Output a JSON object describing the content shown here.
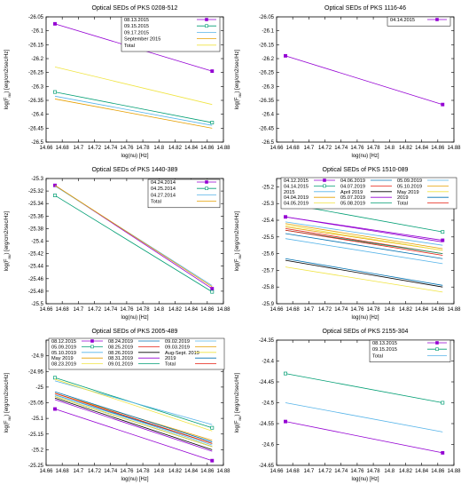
{
  "figure_name": "Optical SEDs grid",
  "chart_data": [
    {
      "type": "line",
      "title": "Optical SEDs of PKS 0208-512",
      "xlabel": "log(nu) [Hz]",
      "ylabel": "log(F_nu) [erg/cm2/sec/Hz]",
      "xlim": [
        14.66,
        14.88
      ],
      "ylim": [
        -26.5,
        -26.05
      ],
      "xticks": [
        "14.66",
        "14.68",
        "14.7",
        "14.72",
        "14.74",
        "14.76",
        "14.78",
        "14.8",
        "14.82",
        "14.84",
        "14.86",
        "14.88"
      ],
      "yticks": [
        "-26.05",
        "-26.1",
        "-26.15",
        "-26.2",
        "-26.25",
        "-26.3",
        "-26.35",
        "-26.4",
        "-26.45",
        "-26.5"
      ],
      "legend_position": "top-right",
      "x": [
        14.671,
        14.866
      ],
      "series": [
        {
          "name": "08.13.2015",
          "color": "#9400d3",
          "marker": "square-filled",
          "values": [
            -26.075,
            -26.245
          ]
        },
        {
          "name": "09.15.2015",
          "color": "#009e73",
          "marker": "square-open",
          "values": [
            -26.32,
            -26.43
          ]
        },
        {
          "name": "09.17.2015",
          "color": "#56b4e9",
          "marker": "none",
          "values": [
            -26.335,
            -26.44
          ]
        },
        {
          "name": "September 2015",
          "color": "#e69f00",
          "marker": "none",
          "values": [
            -26.345,
            -26.45
          ]
        },
        {
          "name": "Total",
          "color": "#f0e442",
          "marker": "none",
          "values": [
            -26.23,
            -26.365
          ]
        }
      ]
    },
    {
      "type": "line",
      "title": "Optical SEDs of PKS 1116-46",
      "xlabel": "log(nu) [Hz]",
      "ylabel": "log(F_nu) [erg/cm2/sec/Hz]",
      "xlim": [
        14.66,
        14.88
      ],
      "ylim": [
        -26.5,
        -26.05
      ],
      "xticks": [
        "14.66",
        "14.68",
        "14.7",
        "14.72",
        "14.74",
        "14.76",
        "14.78",
        "14.8",
        "14.82",
        "14.84",
        "14.86",
        "14.88"
      ],
      "yticks": [
        "-26.05",
        "-26.1",
        "-26.15",
        "-26.2",
        "-26.25",
        "-26.3",
        "-26.35",
        "-26.4",
        "-26.45",
        "-26.5"
      ],
      "legend_position": "top-right",
      "x": [
        14.671,
        14.866
      ],
      "series": [
        {
          "name": "04.14.2015",
          "color": "#9400d3",
          "marker": "square-filled",
          "values": [
            -26.19,
            -26.365
          ]
        }
      ]
    },
    {
      "type": "line",
      "title": "Optical SEDs of PKS 1440-389",
      "xlabel": "log(nu) [Hz]",
      "ylabel": "log(F_nu) [erg/cm2/sec/Hz]",
      "xlim": [
        14.66,
        14.88
      ],
      "ylim": [
        -25.5,
        -25.3
      ],
      "xticks": [
        "14.66",
        "14.68",
        "14.7",
        "14.72",
        "14.74",
        "14.76",
        "14.78",
        "14.8",
        "14.82",
        "14.84",
        "14.86",
        "14.88"
      ],
      "yticks": [
        "-25.3",
        "-25.32",
        "-25.34",
        "-25.36",
        "-25.38",
        "-25.4",
        "-25.42",
        "-25.44",
        "-25.46",
        "-25.48",
        "-25.5"
      ],
      "legend_position": "top-right",
      "x": [
        14.671,
        14.866
      ],
      "series": [
        {
          "name": "04.24.2014",
          "color": "#9400d3",
          "marker": "square-filled",
          "values": [
            -25.311,
            -25.476
          ]
        },
        {
          "name": "04.25.2014",
          "color": "#009e73",
          "marker": "square-open",
          "values": [
            -25.327,
            -25.481
          ]
        },
        {
          "name": "04.27.2014",
          "color": "#56b4e9",
          "marker": "none",
          "values": [
            -25.312,
            -25.471
          ]
        },
        {
          "name": "Total",
          "color": "#e69f00",
          "marker": "none",
          "values": [
            -25.311,
            -25.473
          ]
        }
      ]
    },
    {
      "type": "line",
      "title": "Optical SEDs of PKS 1510-089",
      "xlabel": "log(nu) [Hz]",
      "ylabel": "log(F_nu) [erg/cm2/sec/Hz]",
      "xlim": [
        14.66,
        14.88
      ],
      "ylim": [
        -25.9,
        -25.15
      ],
      "xticks": [
        "14.66",
        "14.68",
        "14.7",
        "14.72",
        "14.74",
        "14.76",
        "14.78",
        "14.8",
        "14.82",
        "14.84",
        "14.86",
        "14.88"
      ],
      "yticks": [
        "-25.2",
        "-25.3",
        "-25.4",
        "-25.5",
        "-25.6",
        "-25.7",
        "-25.8",
        "-25.9"
      ],
      "legend_position": "top",
      "x": [
        14.671,
        14.866
      ],
      "series": [
        {
          "name": "04.12.2015",
          "color": "#9400d3",
          "marker": "square-filled",
          "values": [
            -25.38,
            -25.52
          ]
        },
        {
          "name": "04.14.2015",
          "color": "#009e73",
          "marker": "square-open",
          "values": [
            -25.3,
            -25.47
          ]
        },
        {
          "name": "2015",
          "color": "#56b4e9",
          "marker": "none",
          "values": [
            -25.41,
            -25.55
          ]
        },
        {
          "name": "04.04.2019",
          "color": "#e69f00",
          "marker": "none",
          "values": [
            -25.42,
            -25.57
          ]
        },
        {
          "name": "04.05.2019",
          "color": "#f0e442",
          "marker": "none",
          "values": [
            -25.68,
            -25.83
          ]
        },
        {
          "name": "04.06.2019",
          "color": "#0072b2",
          "marker": "none",
          "values": [
            -25.63,
            -25.79
          ]
        },
        {
          "name": "04.07.2019",
          "color": "#e51e10",
          "marker": "none",
          "values": [
            -25.45,
            -25.6
          ]
        },
        {
          "name": "April 2019",
          "color": "#000000",
          "marker": "none",
          "values": [
            -25.64,
            -25.8
          ]
        },
        {
          "name": "05.07.2019",
          "color": "#9400d3",
          "marker": "none",
          "values": [
            -25.38,
            -25.53
          ]
        },
        {
          "name": "05.08.2019",
          "color": "#009e73",
          "marker": "none",
          "values": [
            -25.46,
            -25.6
          ]
        },
        {
          "name": "05.09.2019",
          "color": "#56b4e9",
          "marker": "none",
          "values": [
            -25.51,
            -25.66
          ]
        },
        {
          "name": "05.10.2019",
          "color": "#e69f00",
          "marker": "none",
          "values": [
            -25.44,
            -25.58
          ]
        },
        {
          "name": "May 2019",
          "color": "#f0e442",
          "marker": "none",
          "values": [
            -25.43,
            -25.58
          ]
        },
        {
          "name": "2019",
          "color": "#0072b2",
          "marker": "none",
          "values": [
            -25.48,
            -25.63
          ]
        },
        {
          "name": "Total",
          "color": "#e51e10",
          "marker": "none",
          "values": [
            -25.46,
            -25.61
          ]
        }
      ]
    },
    {
      "type": "line",
      "title": "Optical SEDs of PKS 2005-489",
      "xlabel": "log(nu) [Hz]",
      "ylabel": "log(F_nu) [erg/cm2/sec/Hz]",
      "xlim": [
        14.66,
        14.88
      ],
      "ylim": [
        -25.25,
        -24.85
      ],
      "xticks": [
        "14.66",
        "14.68",
        "14.7",
        "14.72",
        "14.74",
        "14.76",
        "14.78",
        "14.8",
        "14.82",
        "14.84",
        "14.86",
        "14.88"
      ],
      "yticks": [
        "-24.9",
        "-24.95",
        "-25",
        "-25.05",
        "-25.1",
        "-25.15",
        "-25.2",
        "-25.25"
      ],
      "legend_position": "top",
      "x": [
        14.671,
        14.866
      ],
      "series": [
        {
          "name": "08.12.2015",
          "color": "#9400d3",
          "marker": "square-filled",
          "values": [
            -25.07,
            -25.235
          ]
        },
        {
          "name": "05.09.2019",
          "color": "#009e73",
          "marker": "square-open",
          "values": [
            -24.97,
            -25.13
          ]
        },
        {
          "name": "05.10.2019",
          "color": "#56b4e9",
          "marker": "none",
          "values": [
            -24.98,
            -25.12
          ]
        },
        {
          "name": "May 2019",
          "color": "#e69f00",
          "marker": "none",
          "values": [
            -25.02,
            -25.17
          ]
        },
        {
          "name": "08.23.2019",
          "color": "#f0e442",
          "marker": "none",
          "values": [
            -24.975,
            -25.14
          ]
        },
        {
          "name": "08.24.2019",
          "color": "#0072b2",
          "marker": "none",
          "values": [
            -25.025,
            -25.18
          ]
        },
        {
          "name": "08.25.2019",
          "color": "#e51e10",
          "marker": "none",
          "values": [
            -25.03,
            -25.19
          ]
        },
        {
          "name": "08.26.2019",
          "color": "#000000",
          "marker": "none",
          "values": [
            -25.035,
            -25.2
          ]
        },
        {
          "name": "08.31.2019",
          "color": "#9400d3",
          "marker": "none",
          "values": [
            -25.04,
            -25.205
          ]
        },
        {
          "name": "09.01.2019",
          "color": "#009e73",
          "marker": "none",
          "values": [
            -25.03,
            -25.19
          ]
        },
        {
          "name": "09.02.2019",
          "color": "#56b4e9",
          "marker": "none",
          "values": [
            -25.025,
            -25.185
          ]
        },
        {
          "name": "09.03.2019",
          "color": "#e69f00",
          "marker": "none",
          "values": [
            -25.02,
            -25.18
          ]
        },
        {
          "name": "Aug-Sept. 2019",
          "color": "#f0e442",
          "marker": "none",
          "values": [
            -25.03,
            -25.19
          ]
        },
        {
          "name": "2019",
          "color": "#0072b2",
          "marker": "none",
          "values": [
            -25.015,
            -25.175
          ]
        },
        {
          "name": "Total",
          "color": "#e51e10",
          "marker": "none",
          "values": [
            -25.02,
            -25.18
          ]
        }
      ]
    },
    {
      "type": "line",
      "title": "Optical SEDs of PKS 2155-304",
      "xlabel": "log(nu) [Hz]",
      "ylabel": "log(F_nu) [erg/cm2/sec/Hz]",
      "xlim": [
        14.66,
        14.88
      ],
      "ylim": [
        -24.65,
        -24.35
      ],
      "xticks": [
        "14.66",
        "14.68",
        "14.7",
        "14.72",
        "14.74",
        "14.76",
        "14.78",
        "14.8",
        "14.82",
        "14.84",
        "14.86",
        "14.88"
      ],
      "yticks": [
        "-24.35",
        "-24.4",
        "-24.45",
        "-24.5",
        "-24.55",
        "-24.6",
        "-24.65"
      ],
      "legend_position": "top-right",
      "x": [
        14.671,
        14.866
      ],
      "series": [
        {
          "name": "08.13.2015",
          "color": "#9400d3",
          "marker": "square-filled",
          "values": [
            -24.545,
            -24.62
          ]
        },
        {
          "name": "09.15.2015",
          "color": "#009e73",
          "marker": "square-open",
          "values": [
            -24.43,
            -24.5
          ]
        },
        {
          "name": "Total",
          "color": "#56b4e9",
          "marker": "none",
          "values": [
            -24.5,
            -24.57
          ]
        }
      ]
    }
  ]
}
